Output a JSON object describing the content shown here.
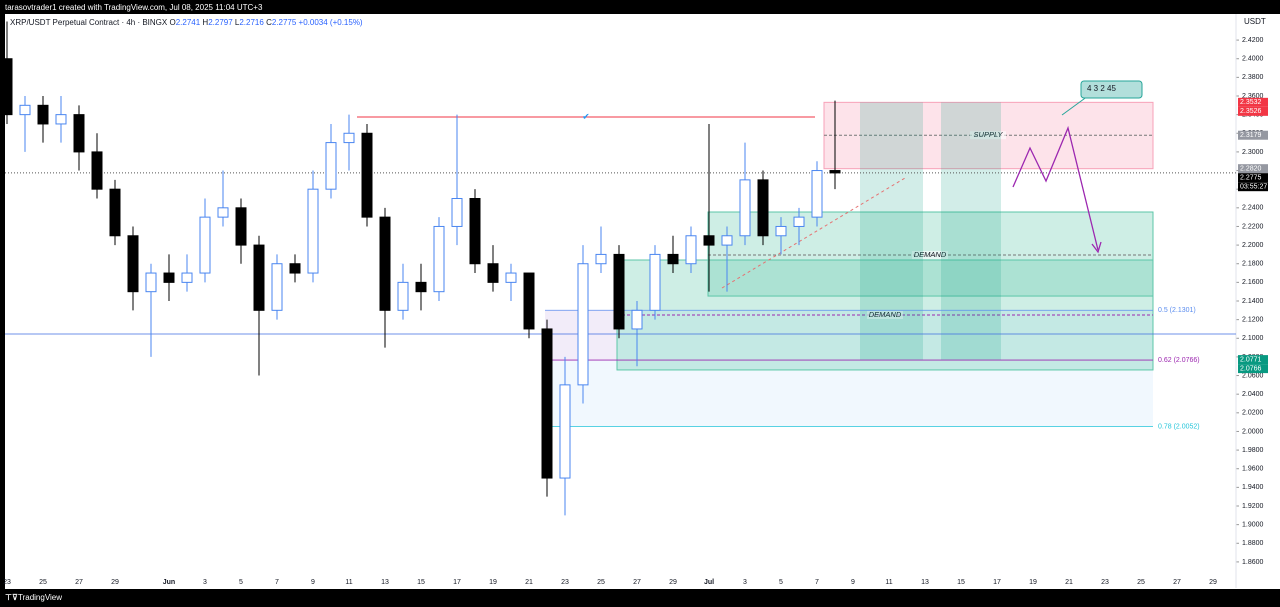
{
  "header": {
    "credit": "tarasovtrader1 created with TradingView.com, Jul 08, 2025 11:04 UTC+3",
    "symbol": "XRP/USDT Perpetual Contract · 4h · BINGX",
    "ohlc": [
      {
        "key": "O",
        "text": "2.2741"
      },
      {
        "key": "H",
        "text": "2.2797"
      },
      {
        "key": "L",
        "text": "2.2716"
      },
      {
        "key": "C",
        "text": "2.2775"
      }
    ],
    "change": "+0.0034 (+0.15%)"
  },
  "chart_data": {
    "type": "candlestick",
    "open": [
      2.4,
      2.34,
      2.35,
      2.33,
      2.34,
      2.3,
      2.26,
      2.21,
      2.15,
      2.17,
      2.16,
      2.17,
      2.23,
      2.24,
      2.2,
      2.13,
      2.18,
      2.17,
      2.26,
      2.31,
      2.32,
      2.23,
      2.13,
      2.16,
      2.15,
      2.22,
      2.25,
      2.18,
      2.16,
      2.17,
      2.11,
      1.95,
      2.05,
      2.18,
      2.19,
      2.11,
      2.13,
      2.19,
      2.18,
      2.21,
      2.2,
      2.21,
      2.27,
      2.21,
      2.22,
      2.23,
      2.28
    ],
    "high": [
      2.44,
      2.36,
      2.36,
      2.36,
      2.35,
      2.32,
      2.27,
      2.22,
      2.18,
      2.19,
      2.19,
      2.25,
      2.28,
      2.25,
      2.21,
      2.19,
      2.19,
      2.28,
      2.33,
      2.34,
      2.33,
      2.24,
      2.18,
      2.18,
      2.23,
      2.34,
      2.26,
      2.2,
      2.18,
      2.17,
      2.12,
      2.08,
      2.2,
      2.22,
      2.2,
      2.14,
      2.2,
      2.21,
      2.22,
      2.33,
      2.22,
      2.31,
      2.28,
      2.23,
      2.24,
      2.29,
      2.355
    ],
    "low": [
      2.33,
      2.3,
      2.31,
      2.31,
      2.28,
      2.25,
      2.2,
      2.13,
      2.08,
      2.14,
      2.15,
      2.16,
      2.22,
      2.18,
      2.06,
      2.12,
      2.16,
      2.16,
      2.25,
      2.28,
      2.22,
      2.09,
      2.12,
      2.13,
      2.14,
      2.2,
      2.17,
      2.15,
      2.14,
      2.1,
      1.93,
      1.91,
      2.03,
      2.17,
      2.1,
      2.07,
      2.12,
      2.17,
      2.17,
      2.15,
      2.15,
      2.2,
      2.2,
      2.19,
      2.2,
      2.22,
      2.26
    ],
    "close": [
      2.34,
      2.35,
      2.33,
      2.34,
      2.3,
      2.26,
      2.21,
      2.15,
      2.17,
      2.16,
      2.17,
      2.23,
      2.24,
      2.2,
      2.13,
      2.18,
      2.17,
      2.26,
      2.31,
      2.32,
      2.23,
      2.13,
      2.16,
      2.15,
      2.22,
      2.25,
      2.18,
      2.16,
      2.17,
      2.11,
      1.95,
      2.05,
      2.18,
      2.19,
      2.11,
      2.13,
      2.19,
      2.18,
      2.21,
      2.2,
      2.21,
      2.27,
      2.21,
      2.22,
      2.23,
      2.28,
      2.2775
    ],
    "colors": {
      "up": "#4a86f0",
      "down": "#000000"
    },
    "x_labels": [
      "23",
      "25",
      "27",
      "29",
      "Jun",
      "3",
      "5",
      "7",
      "9",
      "11",
      "13",
      "15",
      "17",
      "19",
      "21",
      "23",
      "25",
      "27",
      "29",
      "Jul",
      "3",
      "5",
      "7",
      "9",
      "11",
      "13",
      "15",
      "17",
      "19",
      "21",
      "23",
      "25",
      "27",
      "29"
    ],
    "ylim": [
      1.832,
      2.448
    ],
    "yticks": [
      {
        "value": 2.42,
        "label": "2.4200"
      },
      {
        "value": 2.4,
        "label": "2.4000"
      },
      {
        "value": 2.38,
        "label": "2.3800"
      },
      {
        "value": 2.36,
        "label": "2.3600"
      },
      {
        "value": 2.34,
        "label": "2.3400"
      },
      {
        "value": 2.32,
        "label": "2.3200"
      },
      {
        "value": 2.3,
        "label": "2.3000"
      },
      {
        "value": 2.28,
        "label": "2.2800"
      },
      {
        "value": 2.26,
        "label": "2.2600"
      },
      {
        "value": 2.24,
        "label": "2.2400"
      },
      {
        "value": 2.22,
        "label": "2.2200"
      },
      {
        "value": 2.2,
        "label": "2.2000"
      },
      {
        "value": 2.18,
        "label": "2.1800"
      },
      {
        "value": 2.16,
        "label": "2.1600"
      },
      {
        "value": 2.14,
        "label": "2.1400"
      },
      {
        "value": 2.12,
        "label": "2.1200"
      },
      {
        "value": 2.1,
        "label": "2.1000"
      },
      {
        "value": 2.08,
        "label": "2.0800"
      },
      {
        "value": 2.06,
        "label": "2.0600"
      },
      {
        "value": 2.04,
        "label": "2.0400"
      },
      {
        "value": 2.02,
        "label": "2.0200"
      },
      {
        "value": 2.0,
        "label": "2.0000"
      },
      {
        "value": 1.98,
        "label": "1.9800"
      },
      {
        "value": 1.96,
        "label": "1.9600"
      },
      {
        "value": 1.94,
        "label": "1.9400"
      },
      {
        "value": 1.92,
        "label": "1.9200"
      },
      {
        "value": 1.9,
        "label": "1.9000"
      },
      {
        "value": 1.88,
        "label": "1.8800"
      },
      {
        "value": 1.86,
        "label": "1.8600"
      }
    ],
    "y_unit": "USDT",
    "price_badges": [
      {
        "price": 2.3532,
        "color": "#f23645"
      },
      {
        "price": 2.3526,
        "color": "#f23645"
      },
      {
        "price": 2.3179,
        "color": "#9598a1"
      },
      {
        "price": {
          "value": 2.282,
          "label": "2.2820"
        },
        "color": "#9598a1"
      },
      {
        "price": 2.2775,
        "color": "#000000"
      },
      {
        "price": 2.0771,
        "color": "#089981"
      },
      {
        "price": 2.0766,
        "color": "#089981"
      }
    ],
    "countdown": "03:55:27",
    "zones": [
      {
        "label": "SUPPLY",
        "top": 2.3532,
        "bottom": 2.282,
        "mid": 2.3179,
        "color": "#f7a1b8"
      },
      {
        "label": "DEMAND",
        "top": 2.2355,
        "bottom": 2.1453,
        "mid": 2.1893,
        "color": "#5cc6a8"
      },
      {
        "label": "DEMAND",
        "top": 2.184,
        "bottom": 2.066,
        "mid": 2.125,
        "color": "#5cc6a8"
      }
    ],
    "levels": [
      {
        "text": "0.5 (2.1301)",
        "price": 2.1301,
        "color": "#5b8def"
      },
      {
        "text": "0.62 (2.0766)",
        "price": 2.0766,
        "color": "#9c27b0"
      },
      {
        "text": "0.78 (2.0052)",
        "price": 2.0052,
        "color": "#26c6da"
      }
    ],
    "lines": [
      {
        "price": 2.3374,
        "color": "#f23645"
      },
      {
        "price": 2.1046,
        "color": "#3f6ee0"
      }
    ],
    "callout": "4 3 2 45",
    "footer": "TradingView"
  }
}
